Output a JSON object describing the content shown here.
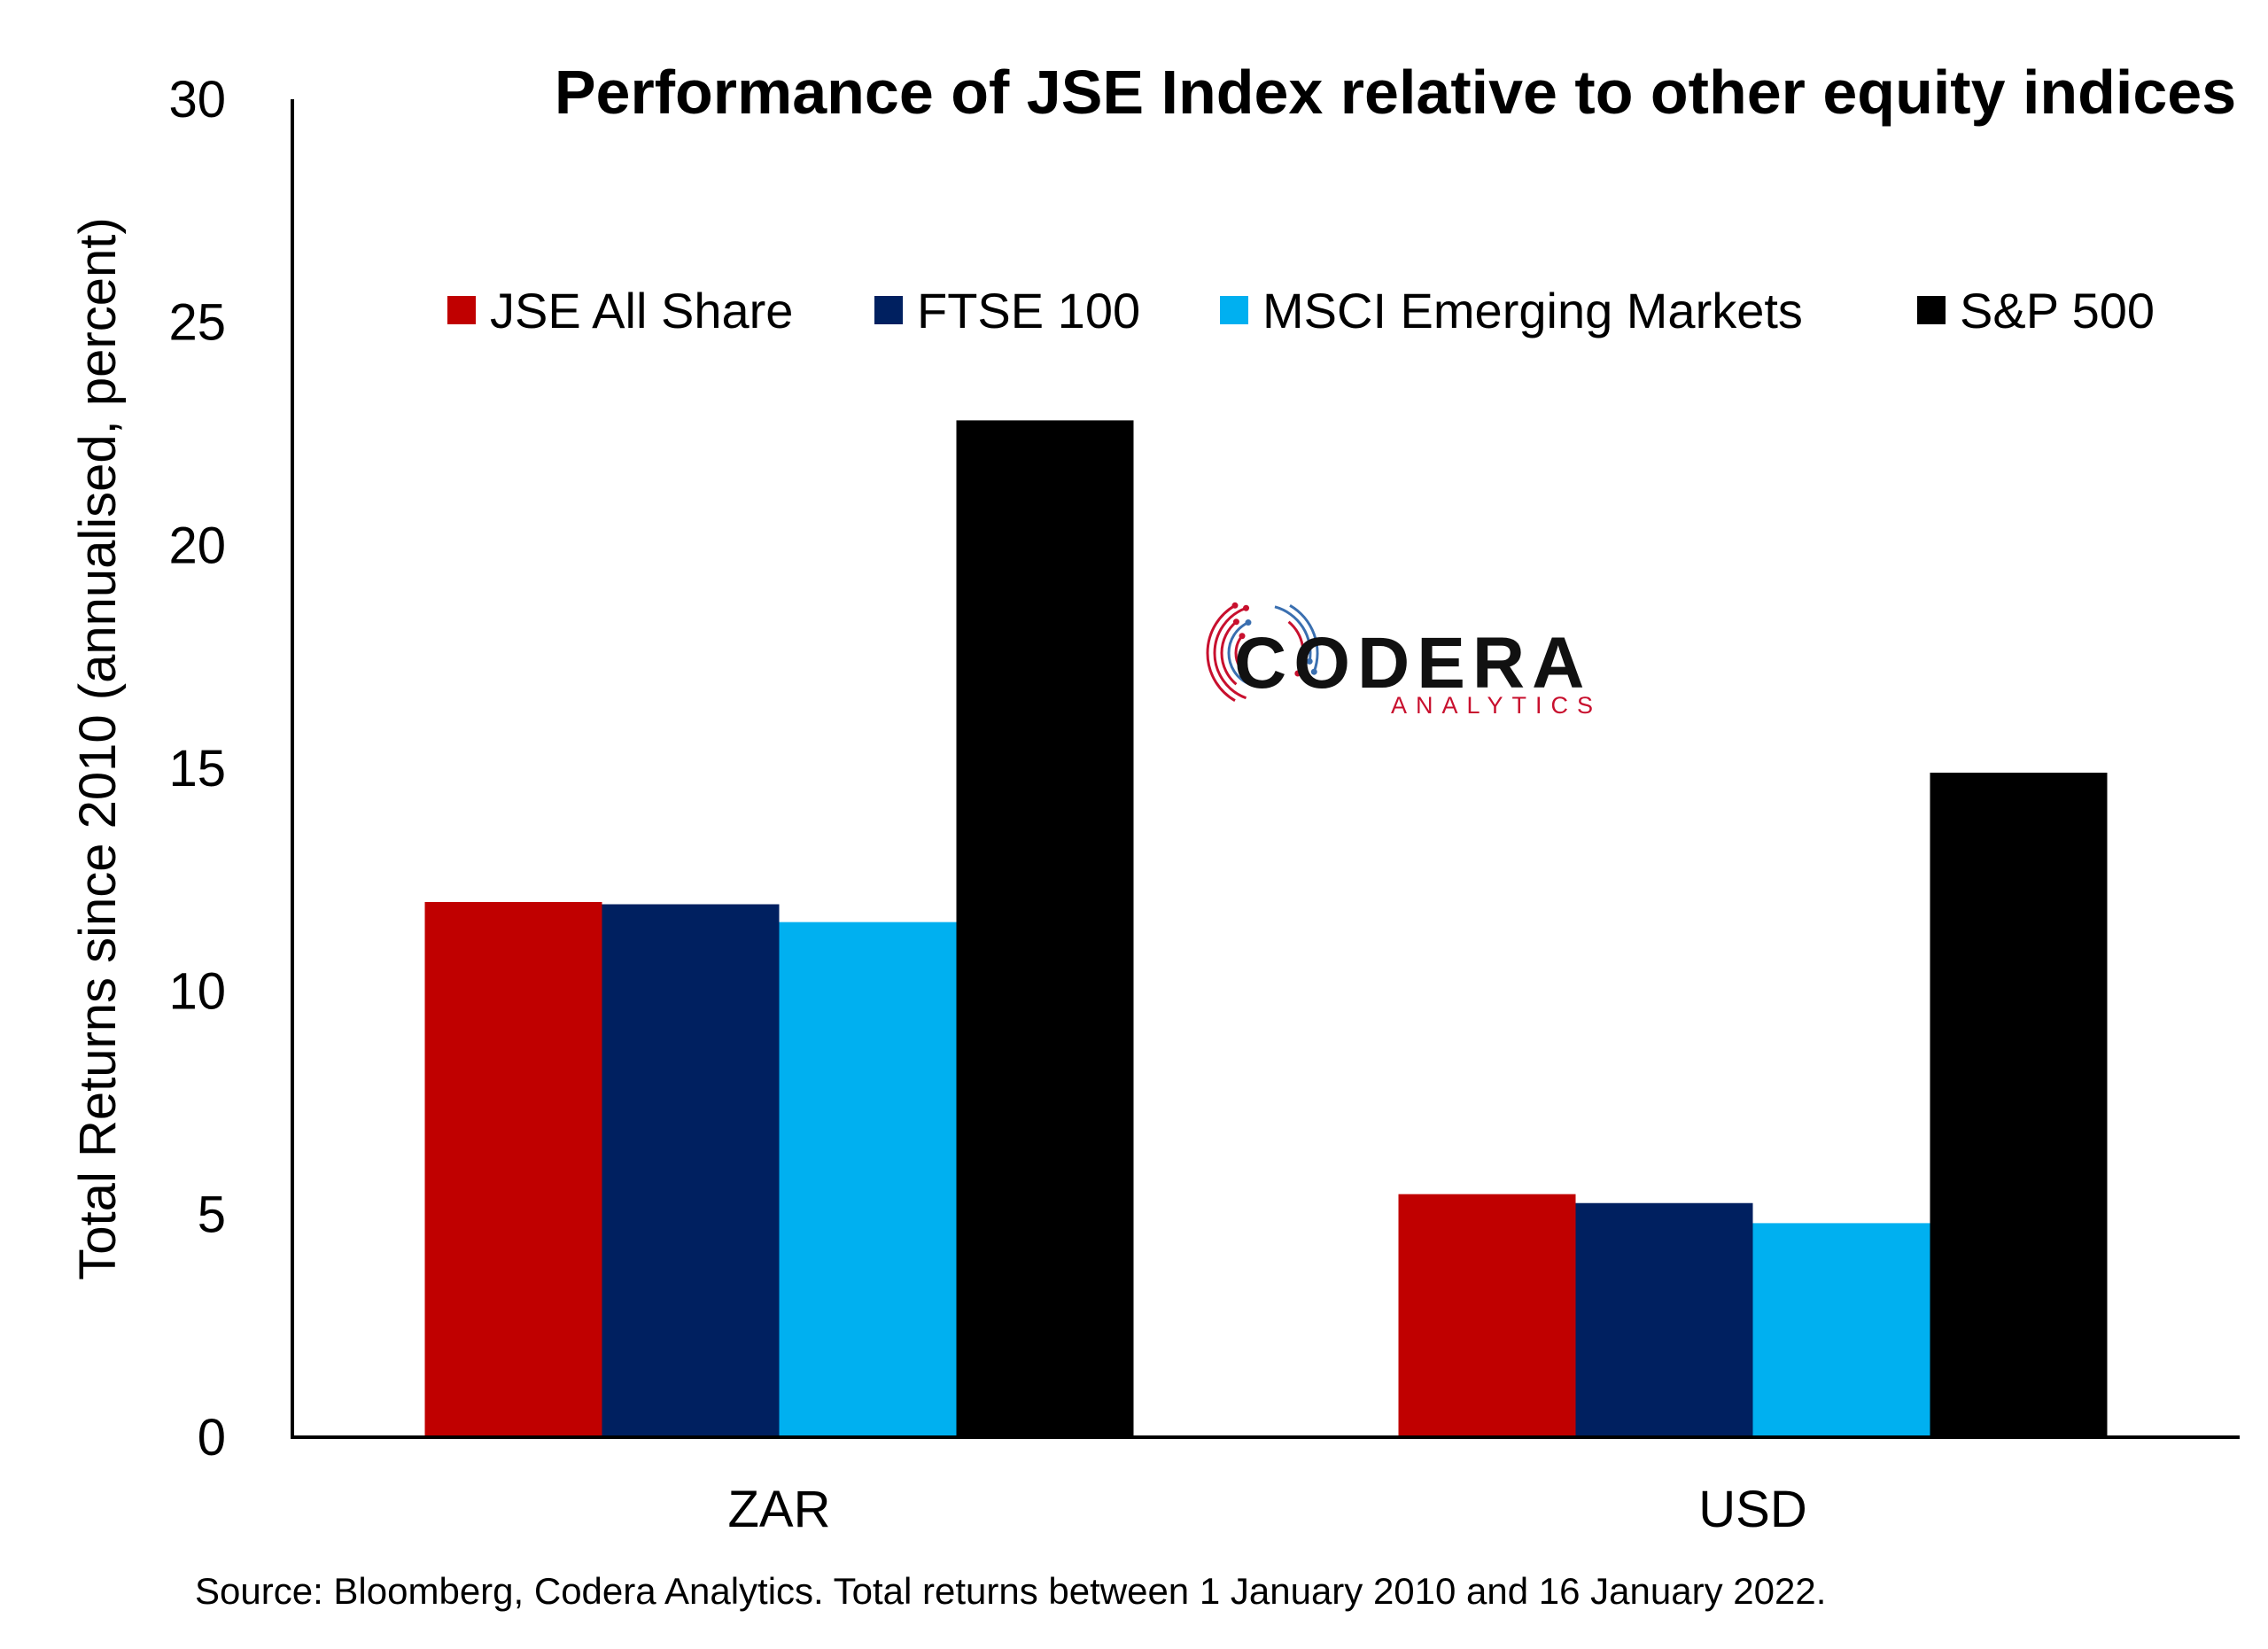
{
  "chart_data": {
    "type": "bar",
    "title": "Performance of JSE Index relative to other equity indices",
    "ylabel": "Total Returns since 2010 (annualised, percent)",
    "xlabel": "",
    "ylim": [
      0,
      30
    ],
    "yticks": [
      "0",
      "5",
      "10",
      "15",
      "20",
      "25",
      "30"
    ],
    "categories": [
      "ZAR",
      "USD"
    ],
    "legend_position": "top",
    "series": [
      {
        "name": "JSE All Share",
        "color": "#C00000",
        "values": [
          12.0,
          5.45
        ]
      },
      {
        "name": "FTSE 100",
        "color": "#002060",
        "values": [
          11.95,
          5.25
        ]
      },
      {
        "name": "MSCI Emerging Markets",
        "color": "#00B0F0",
        "values": [
          11.55,
          4.8
        ]
      },
      {
        "name": "S&P 500",
        "color": "#000000",
        "values": [
          22.8,
          14.9
        ]
      }
    ],
    "grid": false
  },
  "source_note": "Source: Bloomberg, Codera Analytics. Total returns between 1 January 2010 and 16 January 2022.",
  "logo": {
    "name": "CODERA",
    "tagline": "ANALYTICS",
    "colors": {
      "red": "#C8102E",
      "blue": "#3A6FB0"
    }
  }
}
